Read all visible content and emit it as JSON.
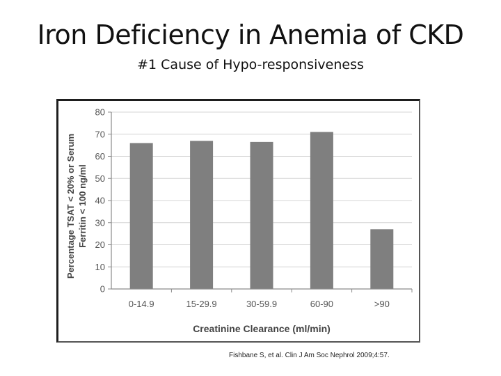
{
  "slide": {
    "title": "Iron Deficiency in Anemia of CKD",
    "subtitle": "#1 Cause of Hypo-responsiveness",
    "citation": "Fishbane S, et al. Clin J Am Soc Nephrol 2009;4:57."
  },
  "chart_data": {
    "type": "bar",
    "categories": [
      "0-14.9",
      "15-29.9",
      "30-59.9",
      "60-90",
      ">90"
    ],
    "values": [
      66,
      67,
      66.5,
      71,
      27
    ],
    "xlabel": "Creatinine Clearance (ml/min)",
    "ylabel_lines": [
      "Percentage TSAT < 20% or Serum",
      "Ferritin < 100 ng/ml"
    ],
    "ylim": [
      0,
      80
    ],
    "yticks": [
      0,
      10,
      20,
      30,
      40,
      50,
      60,
      70,
      80
    ],
    "grid": true,
    "bar_color": "#7f7f7f",
    "grid_color": "#d4d4d4",
    "axis_color": "#8a8a8a",
    "tick_label_color": "#555555"
  }
}
